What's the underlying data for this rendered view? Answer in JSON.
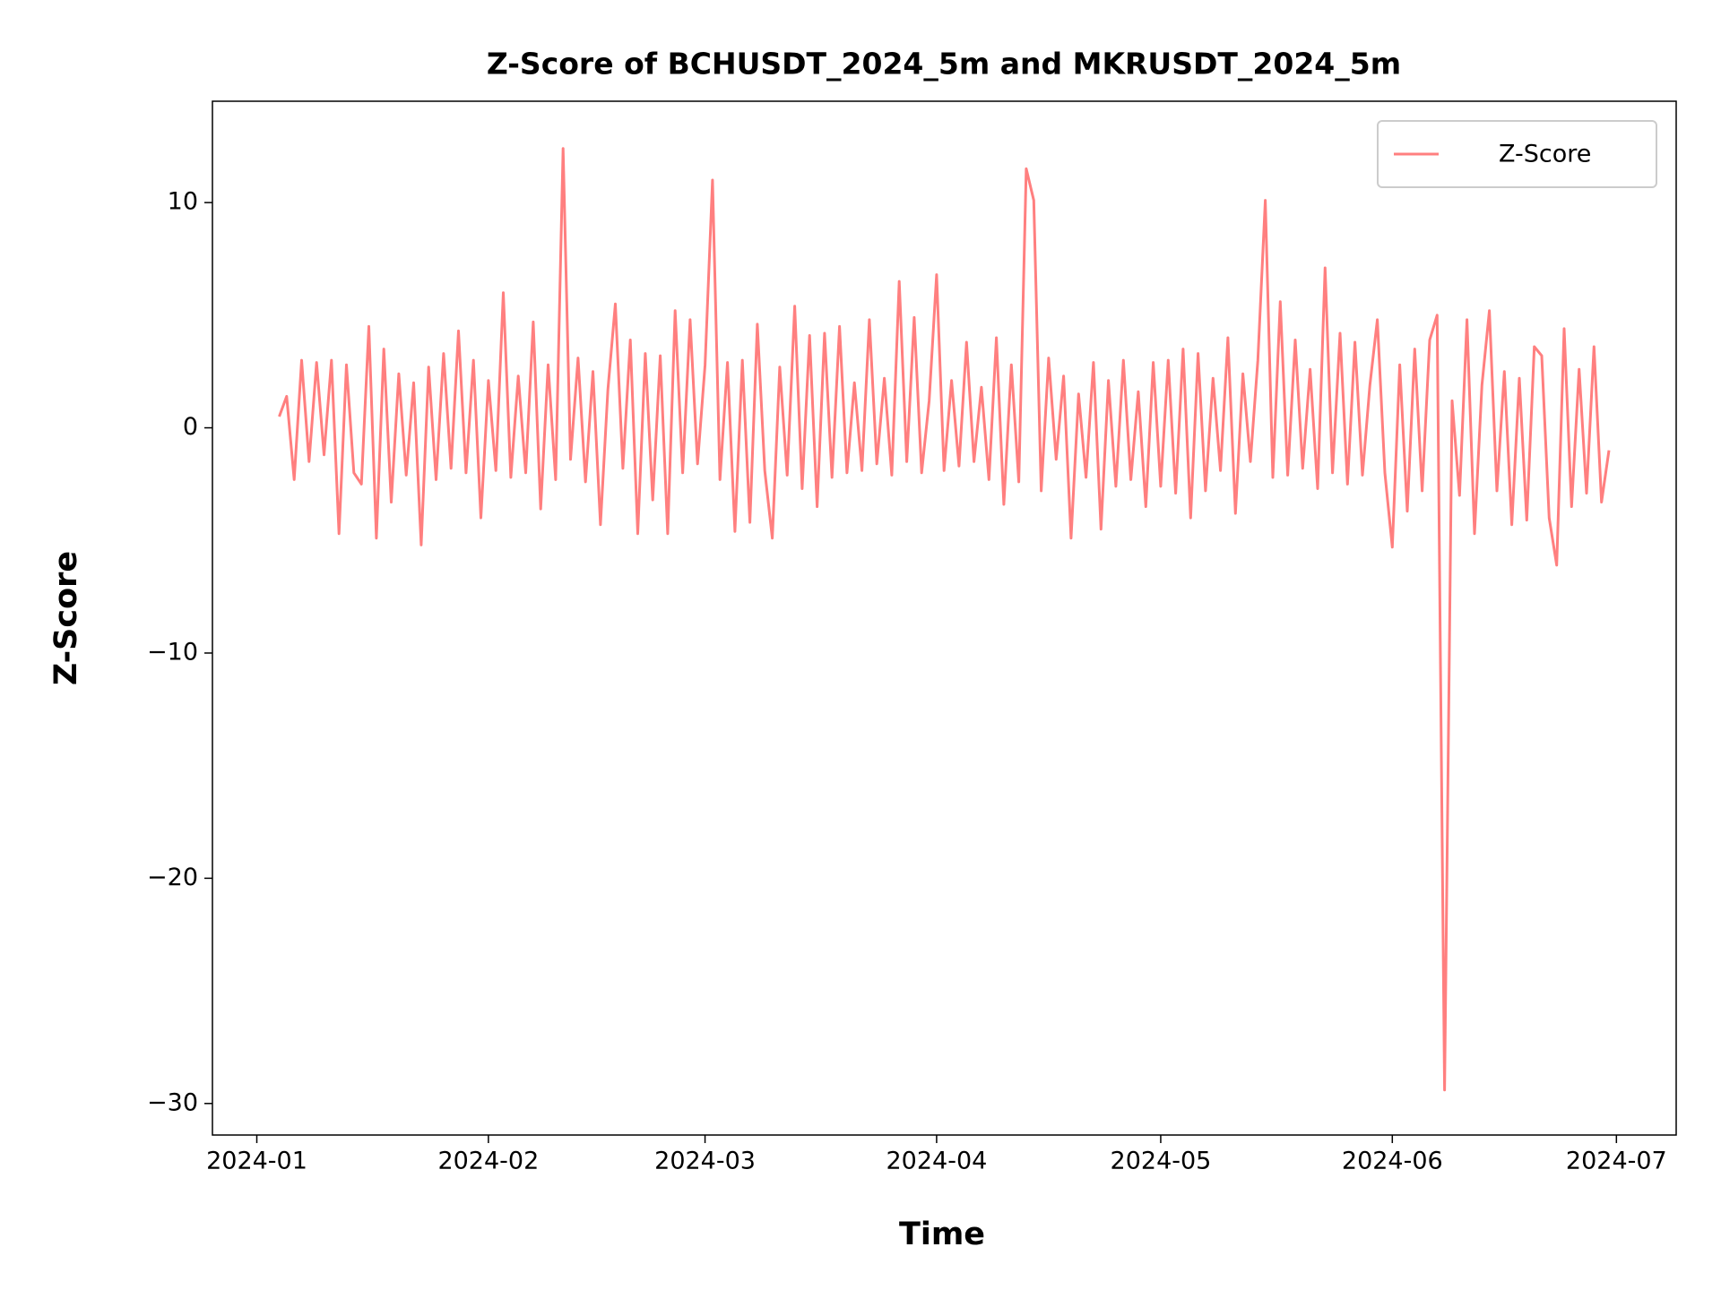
{
  "chart_data": {
    "type": "line",
    "title": "Z-Score of BCHUSDT_2024_5m and MKRUSDT_2024_5m",
    "xlabel": "Time",
    "ylabel": "Z-Score",
    "xlim": [
      -5.94,
      190.0
    ],
    "ylim": [
      -31.4,
      14.5
    ],
    "xticks": [
      {
        "value": 0,
        "label": "2024-01"
      },
      {
        "value": 31,
        "label": "2024-02"
      },
      {
        "value": 60,
        "label": "2024-03"
      },
      {
        "value": 91,
        "label": "2024-04"
      },
      {
        "value": 121,
        "label": "2024-05"
      },
      {
        "value": 152,
        "label": "2024-06"
      },
      {
        "value": 182,
        "label": "2024-07"
      }
    ],
    "yticks": [
      {
        "value": -30,
        "label": "−30"
      },
      {
        "value": -20,
        "label": "−20"
      },
      {
        "value": -10,
        "label": "−10"
      },
      0,
      10
    ],
    "legend": "upper right",
    "x": [
      3,
      4,
      5,
      6,
      7,
      8,
      9,
      10,
      11,
      12,
      13,
      14,
      15,
      16,
      17,
      18,
      19,
      20,
      21,
      22,
      23,
      24,
      25,
      26,
      27,
      28,
      29,
      30,
      31,
      32,
      33,
      34,
      35,
      36,
      37,
      38,
      39,
      40,
      41,
      42,
      43,
      44,
      45,
      46,
      47,
      48,
      49,
      50,
      51,
      52,
      53,
      54,
      55,
      56,
      57,
      58,
      59,
      60,
      61,
      62,
      63,
      64,
      65,
      66,
      67,
      68,
      69,
      70,
      71,
      72,
      73,
      74,
      75,
      76,
      77,
      78,
      79,
      80,
      81,
      82,
      83,
      84,
      85,
      86,
      87,
      88,
      89,
      90,
      91,
      92,
      93,
      94,
      95,
      96,
      97,
      98,
      99,
      100,
      101,
      102,
      103,
      104,
      105,
      106,
      107,
      108,
      109,
      110,
      111,
      112,
      113,
      114,
      115,
      116,
      117,
      118,
      119,
      120,
      121,
      122,
      123,
      124,
      125,
      126,
      127,
      128,
      129,
      130,
      131,
      132,
      133,
      134,
      135,
      136,
      137,
      138,
      139,
      140,
      141,
      142,
      143,
      144,
      145,
      146,
      147,
      148,
      149,
      150,
      151,
      152,
      153,
      154,
      155,
      156,
      157,
      158,
      159,
      160,
      161,
      162,
      163,
      164,
      165,
      166,
      167,
      168,
      169,
      170,
      171,
      172,
      173,
      174,
      175,
      176,
      177,
      178,
      179,
      180,
      181
    ],
    "series": [
      {
        "name": "Z-Score",
        "color": "#ff7f7f",
        "values": [
          0.5,
          1.4,
          -2.3,
          3.0,
          -1.5,
          2.9,
          -1.2,
          3.0,
          -4.7,
          2.8,
          -2.0,
          -2.5,
          4.5,
          -4.9,
          3.5,
          -3.3,
          2.4,
          -2.1,
          2.0,
          -5.2,
          2.7,
          -2.3,
          3.3,
          -1.8,
          4.3,
          -2.0,
          3.0,
          -4.0,
          2.1,
          -1.9,
          6.0,
          -2.2,
          2.3,
          -2.0,
          4.7,
          -3.6,
          2.8,
          -2.3,
          12.4,
          -1.4,
          3.1,
          -2.4,
          2.5,
          -4.3,
          1.7,
          5.5,
          -1.8,
          3.9,
          -4.7,
          3.3,
          -3.2,
          3.2,
          -4.7,
          5.2,
          -2.0,
          4.8,
          -1.6,
          2.8,
          11.0,
          -2.3,
          2.9,
          -4.6,
          3.0,
          -4.2,
          4.6,
          -1.9,
          -4.9,
          2.7,
          -2.1,
          5.4,
          -2.7,
          4.1,
          -3.5,
          4.2,
          -2.2,
          4.5,
          -2.0,
          2.0,
          -1.9,
          4.8,
          -1.6,
          2.2,
          -2.1,
          6.5,
          -1.5,
          4.9,
          -2.0,
          1.2,
          6.8,
          -1.9,
          2.1,
          -1.7,
          3.8,
          -1.5,
          1.8,
          -2.3,
          4.0,
          -3.4,
          2.8,
          -2.4,
          11.5,
          10.1,
          -2.8,
          3.1,
          -1.4,
          2.3,
          -4.9,
          1.5,
          -2.2,
          2.9,
          -4.5,
          2.1,
          -2.6,
          3.0,
          -2.3,
          1.6,
          -3.5,
          2.9,
          -2.6,
          3.0,
          -2.9,
          3.5,
          -4.0,
          3.3,
          -2.8,
          2.2,
          -1.9,
          4.0,
          -3.8,
          2.4,
          -1.5,
          3.0,
          10.1,
          -2.2,
          5.6,
          -2.1,
          3.9,
          -1.8,
          2.6,
          -2.7,
          7.1,
          -2.0,
          4.2,
          -2.5,
          3.8,
          -2.1,
          1.9,
          4.8,
          -2.0,
          -5.3,
          2.8,
          -3.7,
          3.5,
          -2.8,
          3.9,
          5.0,
          -29.4,
          1.2,
          -3.0,
          4.8,
          -4.7,
          1.9,
          5.2,
          -2.8,
          2.5,
          -4.3,
          2.2,
          -4.1,
          3.6,
          3.2,
          -4.0,
          -6.1,
          4.4,
          -3.5,
          2.6,
          -2.9,
          3.6,
          -3.3,
          -1.0
        ]
      }
    ]
  }
}
